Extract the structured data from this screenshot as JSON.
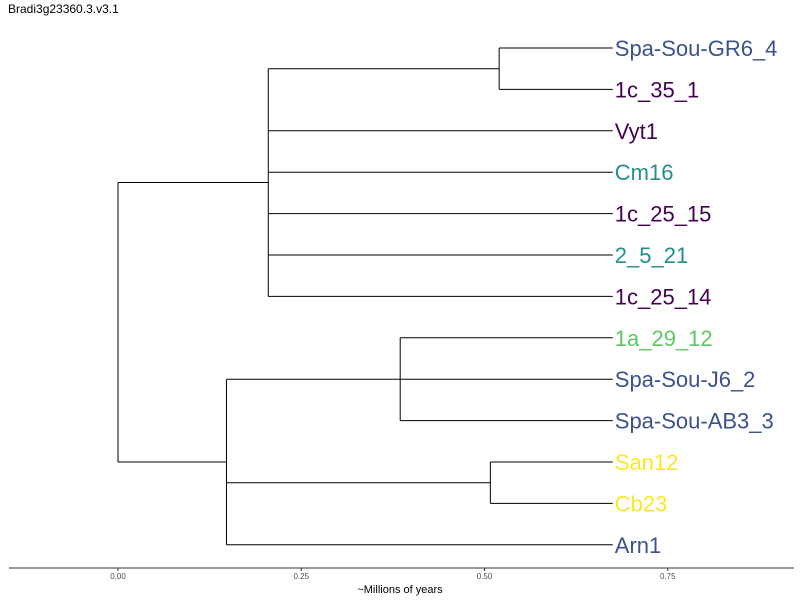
{
  "title": "Bradi3g23360.3.v3.1",
  "x_axis": {
    "label": "~Millions of years",
    "ticks": [
      "0.00",
      "0.25",
      "0.50",
      "0.75"
    ],
    "tick_values": [
      0,
      0.25,
      0.5,
      0.75
    ],
    "range": [
      -0.15,
      0.9
    ]
  },
  "colors": {
    "dark_purple": "#440154",
    "blue": "#3b528b",
    "teal": "#21908c",
    "green": "#5dc863",
    "yellow": "#fde725"
  },
  "tips": [
    {
      "label": "Spa-Sou-GR6_4",
      "color": "#3b528b"
    },
    {
      "label": "1c_35_1",
      "color": "#440154"
    },
    {
      "label": "Vyt1",
      "color": "#440154"
    },
    {
      "label": "Cm16",
      "color": "#21908c"
    },
    {
      "label": "1c_25_15",
      "color": "#440154"
    },
    {
      "label": "2_5_21",
      "color": "#21908c"
    },
    {
      "label": "1c_25_14",
      "color": "#440154"
    },
    {
      "label": "1a_29_12",
      "color": "#5dc863"
    },
    {
      "label": "Spa-Sou-J6_2",
      "color": "#3b528b"
    },
    {
      "label": "Spa-Sou-AB3_3",
      "color": "#3b528b"
    },
    {
      "label": "San12",
      "color": "#fde725"
    },
    {
      "label": "Cb23",
      "color": "#fde725"
    },
    {
      "label": "Arn1",
      "color": "#3b528b"
    }
  ],
  "tree": {
    "x": 0.0,
    "children": [
      {
        "x": 0.205,
        "children": [
          {
            "x": 0.52,
            "children": [
              {
                "tip": 0
              },
              {
                "tip": 1
              }
            ]
          },
          {
            "tip": 2
          },
          {
            "tip": 3
          },
          {
            "tip": 4
          },
          {
            "tip": 5
          },
          {
            "tip": 6
          }
        ]
      },
      {
        "x": 0.148,
        "children": [
          {
            "x": 0.385,
            "children": [
              {
                "tip": 7
              },
              {
                "tip": 8
              },
              {
                "tip": 9
              }
            ]
          },
          {
            "x": 0.508,
            "children": [
              {
                "tip": 10
              },
              {
                "tip": 11
              }
            ]
          },
          {
            "tip": 12
          }
        ]
      }
    ]
  },
  "tip_depth": 0.675
}
